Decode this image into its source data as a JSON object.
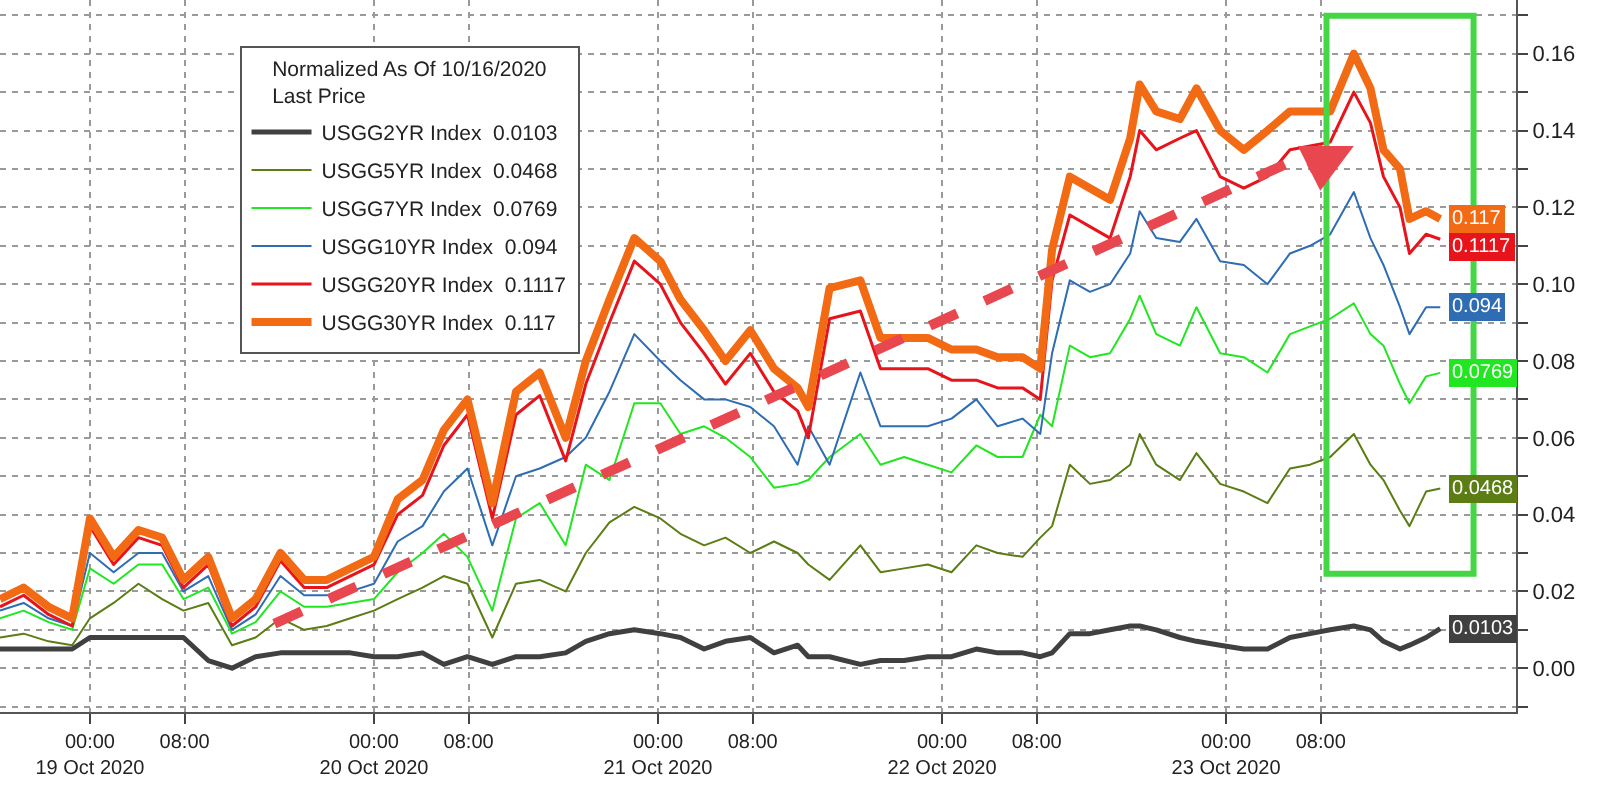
{
  "chart_data": {
    "type": "line",
    "legend_title": "Normalized As Of 10/16/2020\nLast Price",
    "x": [
      "2020-10-18T16:24",
      "2020-10-18T18:24",
      "2020-10-18T20:30",
      "2020-10-18T22:30",
      "2020-10-19T00:00",
      "2020-10-19T02:00",
      "2020-10-19T04:06",
      "2020-10-19T06:06",
      "2020-10-19T07:54",
      "2020-10-19T10:00",
      "2020-10-19T12:00",
      "2020-10-19T14:00",
      "2020-10-19T16:06",
      "2020-10-19T18:06",
      "2020-10-19T20:00",
      "2020-10-19T22:00",
      "2020-10-20T00:00",
      "2020-10-20T02:00",
      "2020-10-20T04:06",
      "2020-10-20T05:54",
      "2020-10-20T07:54",
      "2020-10-20T10:00",
      "2020-10-20T12:00",
      "2020-10-20T14:00",
      "2020-10-20T16:12",
      "2020-10-20T17:54",
      "2020-10-20T19:54",
      "2020-10-20T22:00",
      "2020-10-21T00:12",
      "2020-10-21T01:54",
      "2020-10-21T03:54",
      "2020-10-21T05:42",
      "2020-10-21T07:48",
      "2020-10-21T09:48",
      "2020-10-21T11:48",
      "2020-10-21T12:42",
      "2020-10-21T14:30",
      "2020-10-21T17:06",
      "2020-10-21T18:48",
      "2020-10-21T20:48",
      "2020-10-21T22:48",
      "2020-10-22T00:48",
      "2020-10-22T02:54",
      "2020-10-22T04:42",
      "2020-10-22T06:48",
      "2020-10-22T08:18",
      "2020-10-22T09:18",
      "2020-10-22T10:48",
      "2020-10-22T12:30",
      "2020-10-22T14:12",
      "2020-10-22T15:54",
      "2020-10-22T16:42",
      "2020-10-22T18:06",
      "2020-10-22T20:06",
      "2020-10-22T21:30",
      "2020-10-22T23:30",
      "2020-10-23T01:30",
      "2020-10-23T03:30",
      "2020-10-23T05:24",
      "2020-10-23T07:06",
      "2020-10-23T08:48",
      "2020-10-23T10:48",
      "2020-10-23T12:12",
      "2020-10-23T13:18",
      "2020-10-23T14:42",
      "2020-10-23T15:30",
      "2020-10-23T16:54",
      "2020-10-23T18:06"
    ],
    "series": [
      {
        "name": "USGG2YR Index  0.0103",
        "color": "#404040",
        "values": [
          0.005,
          0.005,
          0.005,
          0.005,
          0.008,
          0.008,
          0.008,
          0.008,
          0.008,
          0.002,
          0.0,
          0.003,
          0.004,
          0.004,
          0.004,
          0.004,
          0.003,
          0.003,
          0.004,
          0.001,
          0.003,
          0.001,
          0.003,
          0.003,
          0.004,
          0.007,
          0.009,
          0.01,
          0.009,
          0.008,
          0.005,
          0.007,
          0.008,
          0.004,
          0.006,
          0.003,
          0.003,
          0.001,
          0.002,
          0.002,
          0.003,
          0.003,
          0.005,
          0.004,
          0.004,
          0.003,
          0.004,
          0.009,
          0.009,
          0.01,
          0.011,
          0.011,
          0.01,
          0.008,
          0.007,
          0.006,
          0.005,
          0.005,
          0.008,
          0.009,
          0.01,
          0.011,
          0.01,
          0.007,
          0.005,
          0.006,
          0.008,
          0.0103
        ],
        "value_labels": [
          null,
          null,
          null,
          null,
          null,
          null,
          null,
          null,
          null,
          null,
          null,
          null,
          null,
          null,
          null,
          null,
          null,
          null,
          null,
          null,
          null,
          null,
          null,
          null,
          null,
          null,
          null,
          null,
          null,
          null,
          null,
          null,
          null,
          null,
          null,
          null,
          null,
          null,
          null,
          null,
          null,
          null,
          null,
          null,
          null,
          null,
          null,
          null,
          null,
          null,
          null,
          null,
          null,
          null,
          null,
          null,
          null,
          null,
          null,
          null,
          null,
          null,
          null,
          null,
          null,
          null,
          null,
          "0.0103"
        ]
      },
      {
        "name": "USGG5YR Index  0.0468",
        "color": "#5b7d14",
        "values": [
          0.008,
          0.009,
          0.007,
          0.006,
          0.013,
          0.017,
          0.022,
          0.018,
          0.015,
          0.017,
          0.006,
          0.008,
          0.013,
          0.01,
          0.011,
          0.013,
          0.015,
          0.018,
          0.021,
          0.024,
          0.022,
          0.008,
          0.022,
          0.023,
          0.02,
          0.03,
          0.038,
          0.042,
          0.039,
          0.035,
          0.032,
          0.034,
          0.03,
          0.033,
          0.03,
          0.027,
          0.023,
          0.032,
          0.025,
          0.026,
          0.027,
          0.025,
          0.032,
          0.03,
          0.029,
          0.034,
          0.037,
          0.053,
          0.048,
          0.049,
          0.053,
          0.061,
          0.053,
          0.049,
          0.056,
          0.048,
          0.046,
          0.043,
          0.052,
          0.053,
          0.055,
          0.061,
          0.053,
          0.049,
          0.041,
          0.037,
          0.046,
          0.0468
        ],
        "value_labels": [
          null,
          null,
          null,
          null,
          null,
          null,
          null,
          null,
          null,
          null,
          null,
          null,
          null,
          null,
          null,
          null,
          null,
          null,
          null,
          null,
          null,
          null,
          null,
          null,
          null,
          null,
          null,
          null,
          null,
          null,
          null,
          null,
          null,
          null,
          null,
          null,
          null,
          null,
          null,
          null,
          null,
          null,
          null,
          null,
          null,
          null,
          null,
          null,
          null,
          null,
          null,
          null,
          null,
          null,
          null,
          null,
          null,
          null,
          null,
          null,
          null,
          null,
          null,
          null,
          null,
          null,
          null,
          "0.0468"
        ]
      },
      {
        "name": "USGG7YR Index  0.0769",
        "color": "#22e622",
        "values": [
          0.013,
          0.015,
          0.012,
          0.01,
          0.026,
          0.022,
          0.027,
          0.027,
          0.018,
          0.021,
          0.009,
          0.012,
          0.02,
          0.016,
          0.016,
          0.017,
          0.018,
          0.025,
          0.03,
          0.035,
          0.029,
          0.015,
          0.039,
          0.043,
          0.032,
          0.053,
          0.049,
          0.069,
          0.069,
          0.061,
          0.063,
          0.06,
          0.055,
          0.047,
          0.048,
          0.049,
          0.055,
          0.061,
          0.053,
          0.055,
          0.053,
          0.051,
          0.058,
          0.055,
          0.055,
          0.066,
          0.063,
          0.084,
          0.081,
          0.082,
          0.091,
          0.097,
          0.087,
          0.084,
          0.094,
          0.082,
          0.081,
          0.077,
          0.087,
          0.089,
          0.091,
          0.095,
          0.087,
          0.084,
          0.074,
          0.069,
          0.076,
          0.0769
        ],
        "value_labels": [
          null,
          null,
          null,
          null,
          null,
          null,
          null,
          null,
          null,
          null,
          null,
          null,
          null,
          null,
          null,
          null,
          null,
          null,
          null,
          null,
          null,
          null,
          null,
          null,
          null,
          null,
          null,
          null,
          null,
          null,
          null,
          null,
          null,
          null,
          null,
          null,
          null,
          null,
          null,
          null,
          null,
          null,
          null,
          null,
          null,
          null,
          null,
          null,
          null,
          null,
          null,
          null,
          null,
          null,
          null,
          null,
          null,
          null,
          null,
          null,
          null,
          null,
          null,
          null,
          null,
          null,
          null,
          "0.0769"
        ]
      },
      {
        "name": "USGG10YR Index  0.094",
        "color": "#2e6db4",
        "values": [
          0.015,
          0.017,
          0.013,
          0.011,
          0.03,
          0.025,
          0.03,
          0.03,
          0.02,
          0.024,
          0.01,
          0.014,
          0.024,
          0.019,
          0.019,
          0.02,
          0.022,
          0.033,
          0.037,
          0.046,
          0.052,
          0.032,
          0.05,
          0.052,
          0.055,
          0.06,
          0.072,
          0.087,
          0.08,
          0.075,
          0.07,
          0.07,
          0.068,
          0.063,
          0.053,
          0.063,
          0.053,
          0.077,
          0.063,
          0.063,
          0.063,
          0.065,
          0.07,
          0.063,
          0.065,
          0.061,
          0.082,
          0.101,
          0.098,
          0.1,
          0.108,
          0.119,
          0.112,
          0.111,
          0.117,
          0.106,
          0.105,
          0.1,
          0.108,
          0.11,
          0.113,
          0.124,
          0.112,
          0.105,
          0.094,
          0.087,
          0.094,
          0.094
        ],
        "value_labels": [
          null,
          null,
          null,
          null,
          null,
          null,
          null,
          null,
          null,
          null,
          null,
          null,
          null,
          null,
          null,
          null,
          null,
          null,
          null,
          null,
          null,
          null,
          null,
          null,
          null,
          null,
          null,
          null,
          null,
          null,
          null,
          null,
          null,
          null,
          null,
          null,
          null,
          null,
          null,
          null,
          null,
          null,
          null,
          null,
          null,
          null,
          null,
          null,
          null,
          null,
          null,
          null,
          null,
          null,
          null,
          null,
          null,
          null,
          null,
          null,
          null,
          null,
          null,
          null,
          null,
          null,
          null,
          "0.094"
        ]
      },
      {
        "name": "USGG20YR Index  0.1117",
        "color": "#e8141c",
        "values": [
          0.016,
          0.019,
          0.014,
          0.011,
          0.037,
          0.027,
          0.034,
          0.032,
          0.021,
          0.027,
          0.011,
          0.016,
          0.028,
          0.021,
          0.021,
          0.024,
          0.027,
          0.04,
          0.045,
          0.058,
          0.066,
          0.039,
          0.066,
          0.071,
          0.054,
          0.074,
          0.09,
          0.106,
          0.1,
          0.09,
          0.082,
          0.074,
          0.082,
          0.072,
          0.067,
          0.06,
          0.091,
          0.093,
          0.078,
          0.078,
          0.078,
          0.075,
          0.075,
          0.073,
          0.073,
          0.07,
          0.101,
          0.118,
          0.115,
          0.112,
          0.128,
          0.14,
          0.135,
          0.138,
          0.14,
          0.128,
          0.125,
          0.128,
          0.135,
          0.136,
          0.137,
          0.15,
          0.142,
          0.128,
          0.12,
          0.108,
          0.113,
          0.1117
        ],
        "value_labels": [
          null,
          null,
          null,
          null,
          null,
          null,
          null,
          null,
          null,
          null,
          null,
          null,
          null,
          null,
          null,
          null,
          null,
          null,
          null,
          null,
          null,
          null,
          null,
          null,
          null,
          null,
          null,
          null,
          null,
          null,
          null,
          null,
          null,
          null,
          null,
          null,
          null,
          null,
          null,
          null,
          null,
          null,
          null,
          null,
          null,
          null,
          null,
          null,
          null,
          null,
          null,
          null,
          null,
          null,
          null,
          null,
          null,
          null,
          null,
          null,
          null,
          null,
          null,
          null,
          null,
          null,
          null,
          "0.1117"
        ]
      },
      {
        "name": "USGG30YR Index  0.117",
        "color": "#f26a13",
        "values": [
          0.018,
          0.021,
          0.016,
          0.013,
          0.039,
          0.029,
          0.036,
          0.034,
          0.023,
          0.029,
          0.013,
          0.018,
          0.03,
          0.023,
          0.023,
          0.026,
          0.029,
          0.044,
          0.049,
          0.062,
          0.07,
          0.043,
          0.072,
          0.077,
          0.06,
          0.08,
          0.096,
          0.112,
          0.106,
          0.096,
          0.088,
          0.08,
          0.088,
          0.078,
          0.073,
          0.068,
          0.099,
          0.101,
          0.086,
          0.086,
          0.086,
          0.083,
          0.083,
          0.081,
          0.081,
          0.078,
          0.109,
          0.128,
          0.125,
          0.122,
          0.138,
          0.152,
          0.145,
          0.143,
          0.151,
          0.14,
          0.135,
          0.14,
          0.145,
          0.145,
          0.145,
          0.16,
          0.151,
          0.135,
          0.13,
          0.117,
          0.119,
          0.117
        ],
        "value_labels": [
          null,
          null,
          null,
          null,
          null,
          null,
          null,
          null,
          null,
          null,
          null,
          null,
          null,
          null,
          null,
          null,
          null,
          null,
          null,
          null,
          null,
          null,
          null,
          null,
          null,
          null,
          null,
          null,
          null,
          null,
          null,
          null,
          null,
          null,
          null,
          null,
          null,
          null,
          null,
          null,
          null,
          null,
          null,
          null,
          null,
          null,
          null,
          null,
          null,
          null,
          null,
          null,
          null,
          null,
          null,
          null,
          null,
          null,
          null,
          null,
          null,
          null,
          null,
          null,
          null,
          null,
          null,
          "0.117"
        ]
      }
    ],
    "xlim": [
      "2020-10-18T16:24",
      "2020-10-24T00:30"
    ],
    "xticks": [
      {
        "value": "2020-10-19T00:00",
        "label": "00:00\n19 Oct 2020"
      },
      {
        "value": "2020-10-19T08:00",
        "label": "08:00"
      },
      {
        "value": "2020-10-20T00:00",
        "label": "00:00\n20 Oct 2020"
      },
      {
        "value": "2020-10-20T08:00",
        "label": "08:00"
      },
      {
        "value": "2020-10-21T00:00",
        "label": "00:00\n21 Oct 2020"
      },
      {
        "value": "2020-10-21T08:00",
        "label": "08:00"
      },
      {
        "value": "2020-10-22T00:00",
        "label": "00:00\n22 Oct 2020"
      },
      {
        "value": "2020-10-22T08:00",
        "label": "08:00"
      },
      {
        "value": "2020-10-23T00:00",
        "label": "00:00\n23 Oct 2020"
      },
      {
        "value": "2020-10-23T08:00",
        "label": "08:00"
      }
    ],
    "ylim": [
      -0.0114,
      0.174
    ],
    "yticks": [
      {
        "value": -0.01,
        "label": null
      },
      {
        "value": 0,
        "label": "0.00"
      },
      {
        "value": 0.01,
        "label": null
      },
      {
        "value": 0.02,
        "label": "0.02"
      },
      {
        "value": 0.03,
        "label": null
      },
      {
        "value": 0.04,
        "label": "0.04"
      },
      {
        "value": 0.05,
        "label": null
      },
      {
        "value": 0.06,
        "label": "0.06"
      },
      {
        "value": 0.07,
        "label": null
      },
      {
        "value": 0.08,
        "label": "0.08"
      },
      {
        "value": 0.09,
        "label": null
      },
      {
        "value": 0.1,
        "label": "0.10"
      },
      {
        "value": 0.11,
        "label": null
      },
      {
        "value": 0.12,
        "label": "0.12"
      },
      {
        "value": 0.13,
        "label": null
      },
      {
        "value": 0.14,
        "label": "0.14"
      },
      {
        "value": 0.15,
        "label": null
      },
      {
        "value": 0.16,
        "label": "0.16"
      },
      {
        "value": 0.17,
        "label": null
      }
    ],
    "grid": true,
    "legend": "top left",
    "marker": "none",
    "line_style": "solid"
  }
}
